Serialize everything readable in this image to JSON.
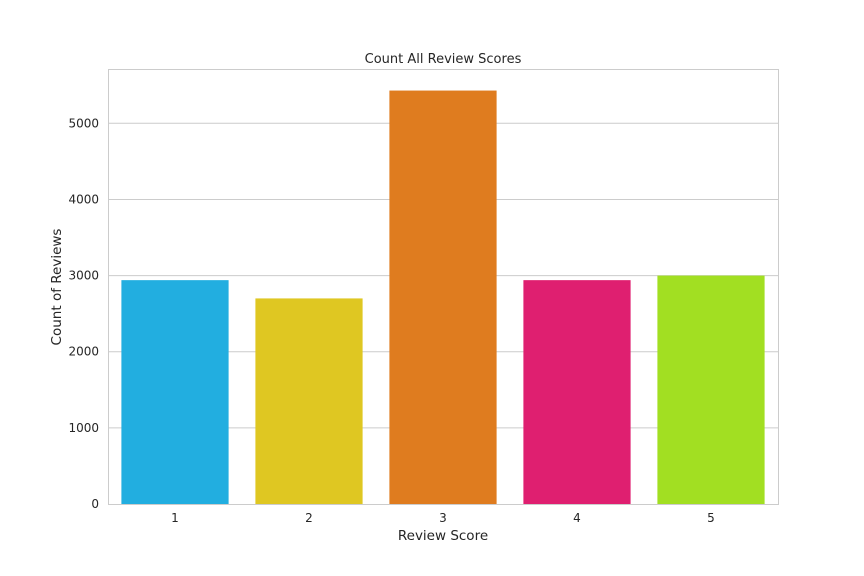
{
  "chart_data": {
    "type": "bar",
    "title": "Count All Review Scores",
    "xlabel": "Review Score",
    "ylabel": "Count of Reviews",
    "categories": [
      "1",
      "2",
      "3",
      "4",
      "5"
    ],
    "values": [
      2940,
      2700,
      5430,
      2940,
      3000
    ],
    "colors": [
      "#22aee0",
      "#dfc722",
      "#df7c1f",
      "#df1f70",
      "#a2df22"
    ],
    "yticks": [
      0,
      1000,
      2000,
      3000,
      4000,
      5000
    ],
    "ylim": [
      0,
      5700
    ],
    "grid": true,
    "legend": "none"
  }
}
